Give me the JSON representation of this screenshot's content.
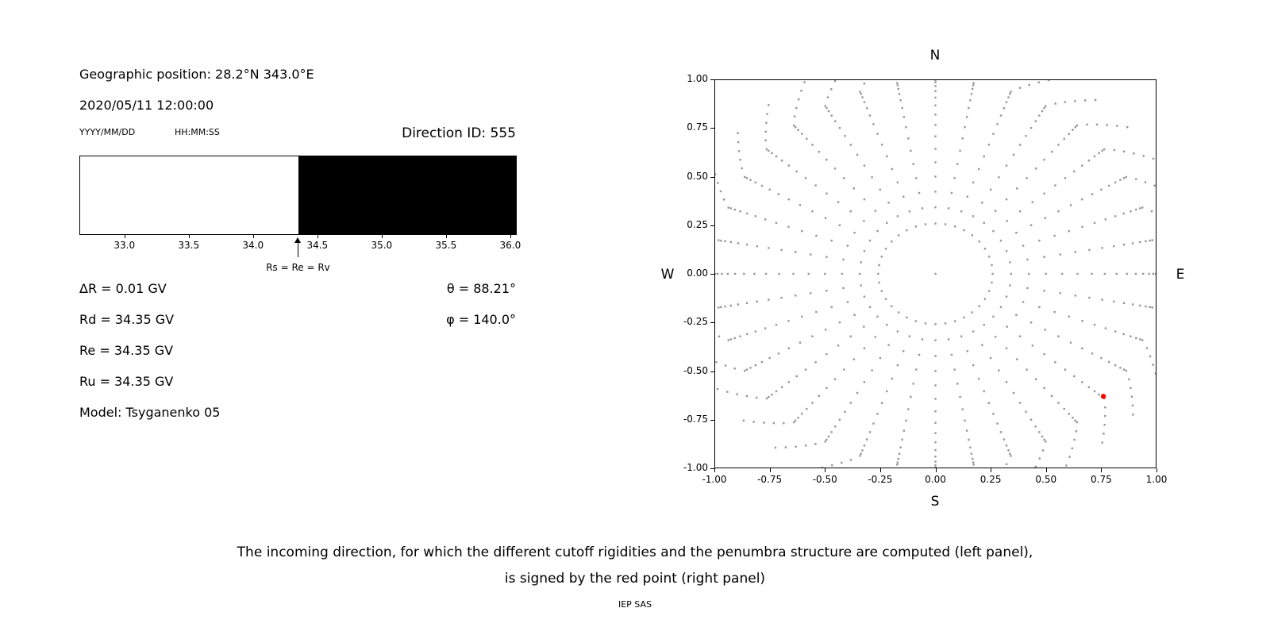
{
  "colors": {
    "background": "#ffffff",
    "text": "#000000",
    "grid_dot": "#969696",
    "red_point": "#ff0000",
    "penumbra_forbidden": "#000000",
    "penumbra_allowed": "#ffffff"
  },
  "left_panel": {
    "geo_position": "Geographic position: 28.2°N 343.0°E",
    "datetime": "2020/05/11 12:00:00",
    "date_format_label": "YYYY/MM/DD",
    "time_format_label": "HH:MM:SS",
    "direction_id": "Direction ID: 555",
    "arrow_label": "Rs = Re = Rv",
    "params": [
      "ΔR = 0.01 GV",
      "Rd = 34.35 GV",
      "Re = 34.35 GV",
      "Ru = 34.35 GV",
      "Model: Tsyganenko 05"
    ],
    "angles": [
      "θ = 88.21°",
      "φ = 140.0°"
    ]
  },
  "right_panel": {
    "compass": {
      "top": "N",
      "bottom": "S",
      "left": "W",
      "right": "E"
    }
  },
  "caption": {
    "line1": "The incoming direction, for which the different cutoff rigidities and the penumbra structure are computed (left panel),",
    "line2": "is signed by the red point (right panel)",
    "credit": "IEP SAS"
  },
  "chart_data": [
    {
      "type": "area",
      "xlim": [
        32.65,
        36.05
      ],
      "xticks": [
        "33.0",
        "33.5",
        "34.0",
        "34.5",
        "35.0",
        "35.5",
        "36.0"
      ],
      "regions": [
        {
          "x0": 32.65,
          "x1": 34.35,
          "color": "#ffffff"
        },
        {
          "x0": 34.35,
          "x1": 36.05,
          "color": "#000000"
        }
      ],
      "marker": {
        "x": 34.35,
        "label": "Rs = Re = Rv"
      },
      "values": {
        "delta_R_GV": 0.01,
        "Rd_GV": 34.35,
        "Re_GV": 34.35,
        "Ru_GV": 34.35,
        "theta_deg": 88.21,
        "phi_deg": 140.0,
        "model": "Tsyganenko 05",
        "direction_id": 555
      }
    },
    {
      "type": "scatter",
      "xlim": [
        -1,
        1
      ],
      "ylim": [
        -1,
        1
      ],
      "xticks": [
        "-1.00",
        "-0.75",
        "-0.50",
        "-0.25",
        "0.00",
        "0.25",
        "0.50",
        "0.75",
        "1.00"
      ],
      "yticks": [
        "1.00",
        "0.75",
        "0.50",
        "0.25",
        "0.00",
        "-0.25",
        "-0.50",
        "-0.75",
        "-1.00"
      ],
      "compass": {
        "top": "N",
        "bottom": "S",
        "left": "W",
        "right": "E"
      },
      "grid": {
        "color": "#969696",
        "center_point": true,
        "azimuth_start_deg": 0,
        "azimuth_step_deg": 10,
        "azimuth_count": 36,
        "zenith_min_deg": 15,
        "zenith_max_deg": 85,
        "zenith_step_deg": 5,
        "radius_rule": "sin(zenith)",
        "tail": {
          "count": 5,
          "dr": 0.03,
          "drift_deg": 1.8
        }
      },
      "red_point": {
        "x": 0.76,
        "y": -0.63
      }
    }
  ]
}
